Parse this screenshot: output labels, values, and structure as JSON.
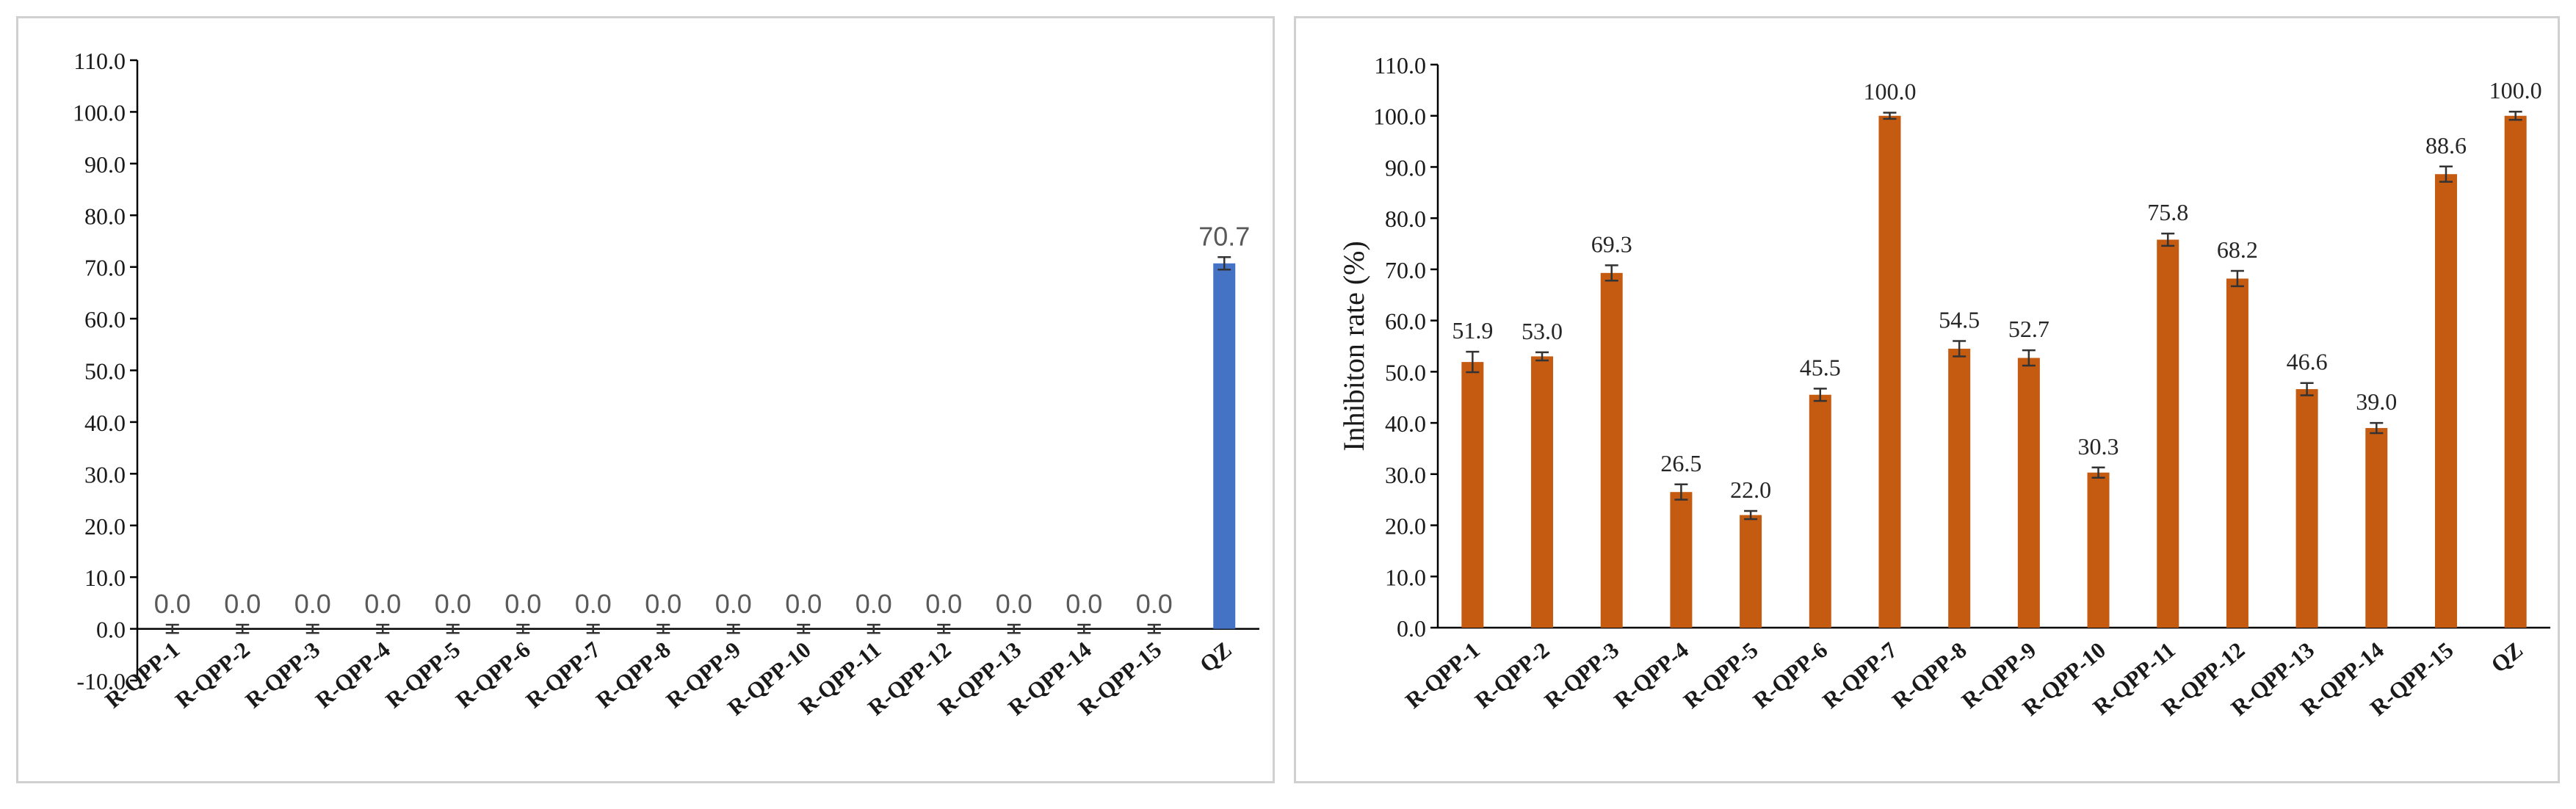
{
  "chart_data": [
    {
      "type": "bar",
      "title": "",
      "xlabel": "",
      "ylabel": "",
      "ylim": [
        -10,
        110
      ],
      "yticks": [
        -10,
        0,
        10,
        20,
        30,
        40,
        50,
        60,
        70,
        80,
        90,
        100,
        110
      ],
      "ytick_labels": [
        "-10.0",
        "0.0",
        "10.0",
        "20.0",
        "30.0",
        "40.0",
        "50.0",
        "60.0",
        "70.0",
        "80.0",
        "90.0",
        "100.0",
        "110.0"
      ],
      "categories": [
        "R-QPP-1",
        "R-QPP-2",
        "R-QPP-3",
        "R-QPP-4",
        "R-QPP-5",
        "R-QPP-6",
        "R-QPP-7",
        "R-QPP-8",
        "R-QPP-9",
        "R-QPP-10",
        "R-QPP-11",
        "R-QPP-12",
        "R-QPP-13",
        "R-QPP-14",
        "R-QPP-15",
        "QZ"
      ],
      "values": [
        0,
        0,
        0,
        0,
        0,
        0,
        0,
        0,
        0,
        0,
        0,
        0,
        0,
        0,
        0,
        70.7
      ],
      "value_labels": [
        "0.0",
        "0.0",
        "0.0",
        "0.0",
        "0.0",
        "0.0",
        "0.0",
        "0.0",
        "0.0",
        "0.0",
        "0.0",
        "0.0",
        "0.0",
        "0.0",
        "0.0",
        "70.7"
      ],
      "errors": [
        0.8,
        0.8,
        0.8,
        0.8,
        0.8,
        0.8,
        0.8,
        0.8,
        0.8,
        0.8,
        0.8,
        0.8,
        0.8,
        0.8,
        0.8,
        1.2
      ],
      "bar_color": "#4472c4",
      "label_color": "#595959",
      "grid": false,
      "legend": "none"
    },
    {
      "type": "bar",
      "title": "",
      "xlabel": "",
      "ylabel": "Inhibiton  rate (%)",
      "ylim": [
        0,
        110
      ],
      "yticks": [
        0,
        10,
        20,
        30,
        40,
        50,
        60,
        70,
        80,
        90,
        100,
        110
      ],
      "ytick_labels": [
        "0.0",
        "10.0",
        "20.0",
        "30.0",
        "40.0",
        "50.0",
        "60.0",
        "70.0",
        "80.0",
        "90.0",
        "100.0",
        "110.0"
      ],
      "categories": [
        "R-QPP-1",
        "R-QPP-2",
        "R-QPP-3",
        "R-QPP-4",
        "R-QPP-5",
        "R-QPP-6",
        "R-QPP-7",
        "R-QPP-8",
        "R-QPP-9",
        "R-QPP-10",
        "R-QPP-11",
        "R-QPP-12",
        "R-QPP-13",
        "R-QPP-14",
        "R-QPP-15",
        "QZ"
      ],
      "values": [
        51.9,
        53.0,
        69.3,
        26.5,
        22.0,
        45.5,
        100.0,
        54.5,
        52.7,
        30.3,
        75.8,
        68.2,
        46.6,
        39.0,
        88.6,
        100.0
      ],
      "value_labels": [
        "51.9",
        "53.0",
        "69.3",
        "26.5",
        "22.0",
        "45.5",
        "100.0",
        "54.5",
        "52.7",
        "30.3",
        "75.8",
        "68.2",
        "46.6",
        "39.0",
        "88.6",
        "100.0"
      ],
      "errors": [
        2.0,
        0.8,
        1.5,
        1.5,
        0.8,
        1.2,
        0.6,
        1.5,
        1.5,
        1.0,
        1.2,
        1.5,
        1.2,
        1.0,
        1.5,
        0.8
      ],
      "bar_color": "#c55a11",
      "label_color": "#262626",
      "grid": false,
      "legend": "none"
    }
  ]
}
